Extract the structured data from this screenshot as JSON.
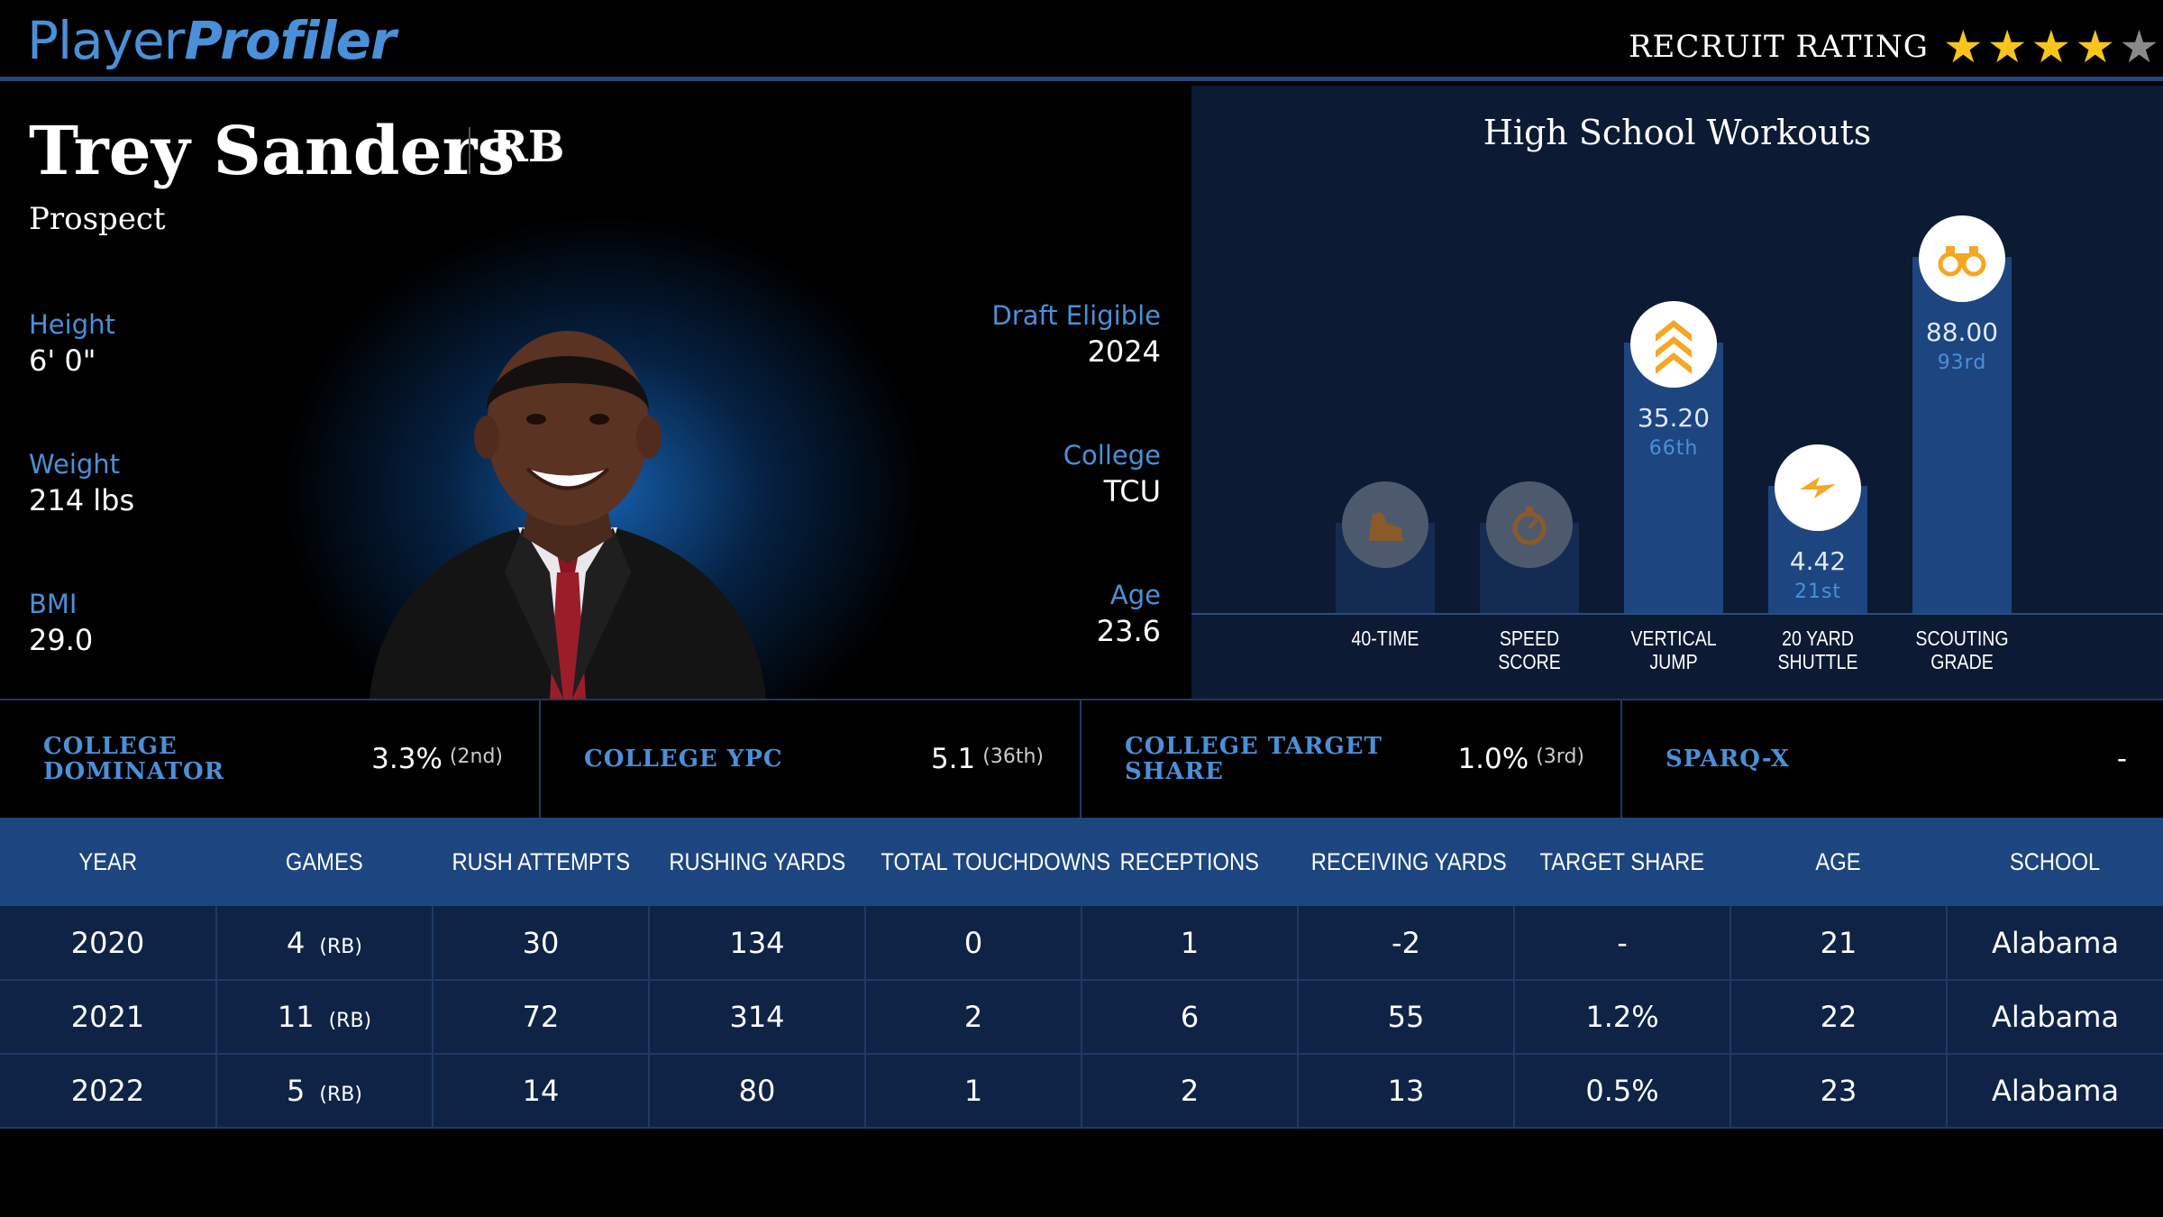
{
  "brand": {
    "part1": "Player",
    "part2": "Profiler"
  },
  "recruit": {
    "label": "RECRUIT RATING",
    "stars": 4,
    "max_stars": 5
  },
  "player": {
    "name": "Trey Sanders",
    "position": "RB",
    "status": "Prospect",
    "height": {
      "label": "Height",
      "value": "6' 0\""
    },
    "weight": {
      "label": "Weight",
      "value": "214 lbs"
    },
    "bmi": {
      "label": "BMI",
      "value": "29.0"
    },
    "draft": {
      "label": "Draft Eligible",
      "value": "2024"
    },
    "college": {
      "label": "College",
      "value": "TCU"
    },
    "age": {
      "label": "Age",
      "value": "23.6"
    }
  },
  "workouts": {
    "title": "High School Workouts",
    "items": [
      {
        "label_l1": "40-TIME",
        "label_l2": "",
        "value": "",
        "percentile": "",
        "percentile_num": null,
        "icon": "running-shoe-icon"
      },
      {
        "label_l1": "SPEED",
        "label_l2": "SCORE",
        "value": "",
        "percentile": "",
        "percentile_num": null,
        "icon": "stopwatch-icon"
      },
      {
        "label_l1": "VERTICAL",
        "label_l2": "JUMP",
        "value": "35.20",
        "percentile": "66th",
        "percentile_num": 66,
        "icon": "chevrons-up-icon"
      },
      {
        "label_l1": "20 YARD",
        "label_l2": "SHUTTLE",
        "value": "4.42",
        "percentile": "21st",
        "percentile_num": 21,
        "icon": "lightning-icon"
      },
      {
        "label_l1": "SCOUTING",
        "label_l2": "GRADE",
        "value": "88.00",
        "percentile": "93rd",
        "percentile_num": 93,
        "icon": "binoculars-icon"
      }
    ]
  },
  "metrics": [
    {
      "label": "COLLEGE DOMINATOR",
      "value": "3.3%",
      "rank": "(2nd)"
    },
    {
      "label": "COLLEGE YPC",
      "value": "5.1",
      "rank": "(36th)"
    },
    {
      "label": "COLLEGE TARGET SHARE",
      "value": "1.0%",
      "rank": "(3rd)"
    },
    {
      "label": "SPARQ-X",
      "value": "-",
      "rank": ""
    }
  ],
  "table": {
    "headers": [
      "YEAR",
      "GAMES",
      "RUSH ATTEMPTS",
      "RUSHING YARDS",
      "TOTAL TOUCHDOWNS",
      "RECEPTIONS",
      "RECEIVING YARDS",
      "TARGET SHARE",
      "AGE",
      "SCHOOL"
    ],
    "rows": [
      {
        "year": "2020",
        "games": "4",
        "games_pos": "(RB)",
        "rush_att": "30",
        "rush_yds": "134",
        "tds": "0",
        "rec": "1",
        "rec_yds": "-2",
        "target": "-",
        "age": "21",
        "school": "Alabama"
      },
      {
        "year": "2021",
        "games": "11",
        "games_pos": "(RB)",
        "rush_att": "72",
        "rush_yds": "314",
        "tds": "2",
        "rec": "6",
        "rec_yds": "55",
        "target": "1.2%",
        "age": "22",
        "school": "Alabama"
      },
      {
        "year": "2022",
        "games": "5",
        "games_pos": "(RB)",
        "rush_att": "14",
        "rush_yds": "80",
        "tds": "1",
        "rec": "2",
        "rec_yds": "13",
        "target": "0.5%",
        "age": "23",
        "school": "Alabama"
      }
    ]
  },
  "colors": {
    "accent": "#4a90d9",
    "panel": "#0c1a33",
    "bar": "#1d4580",
    "star": "#f7c51e",
    "icon_orange": "#f5a623"
  }
}
